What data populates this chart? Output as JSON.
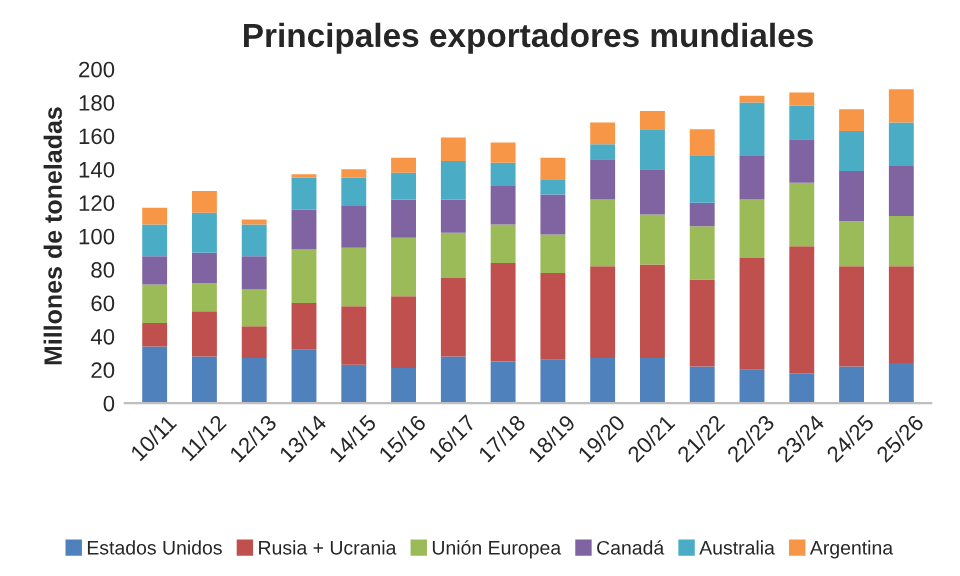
{
  "chart_data": {
    "type": "bar",
    "title": "Principales exportadores mundiales",
    "ylabel": "Millones de toneladas",
    "categories": [
      "10/11",
      "11/12",
      "12/13",
      "13/14",
      "14/15",
      "15/16",
      "16/17",
      "17/18",
      "18/19",
      "19/20",
      "20/21",
      "21/22",
      "22/23",
      "23/24",
      "24/25",
      "25/26"
    ],
    "stacked": true,
    "ylim": [
      0,
      200
    ],
    "yticks": [
      0,
      20,
      40,
      60,
      80,
      100,
      120,
      140,
      160,
      180,
      200
    ],
    "grid": false,
    "legend": "bottom",
    "series": [
      {
        "name": "Estados Unidos",
        "color": "#4f81bd",
        "values": [
          34,
          28,
          27,
          32,
          23,
          21,
          28,
          25,
          26,
          27,
          27,
          22,
          20,
          18,
          22,
          24
        ]
      },
      {
        "name": "Rusia + Ucrania",
        "color": "#c0504d",
        "values": [
          14,
          27,
          19,
          28,
          35,
          43,
          47,
          59,
          52,
          55,
          56,
          52,
          67,
          76,
          60,
          58
        ]
      },
      {
        "name": "Unión Europea",
        "color": "#9bbb59",
        "values": [
          23,
          17,
          22,
          32,
          35,
          35,
          27,
          23,
          23,
          40,
          30,
          32,
          35,
          38,
          27,
          30
        ]
      },
      {
        "name": "Canadá",
        "color": "#8064a2",
        "values": [
          17,
          18,
          20,
          24,
          25,
          23,
          20,
          23,
          24,
          24,
          27,
          14,
          26,
          26,
          30,
          30
        ]
      },
      {
        "name": "Australia",
        "color": "#4bacc6",
        "values": [
          19,
          24,
          19,
          19,
          17,
          16,
          23,
          14,
          9,
          9,
          24,
          28,
          32,
          20,
          24,
          26
        ]
      },
      {
        "name": "Argentina",
        "color": "#f79646",
        "values": [
          10,
          13,
          3,
          2,
          5,
          9,
          14,
          12,
          13,
          13,
          11,
          16,
          4,
          8,
          13,
          20
        ]
      }
    ]
  }
}
